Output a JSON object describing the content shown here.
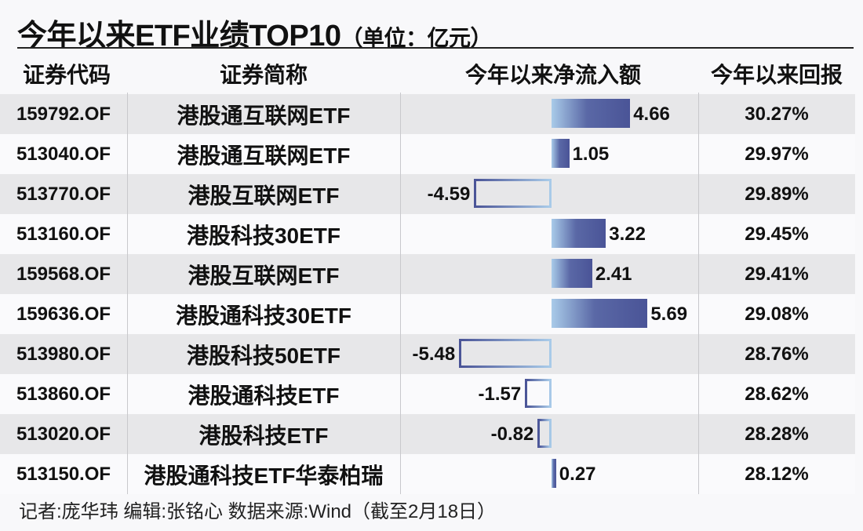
{
  "title": "今年以来ETF业绩TOP10",
  "unit": "（单位：亿元）",
  "headers": [
    "证券代码",
    "证券简称",
    "今年以来净流入额",
    "今年以来回报"
  ],
  "colors": {
    "bar_dark": "#4a5497",
    "bar_light": "#a9cbe9",
    "row_odd": "#e7e7e9",
    "row_even": "#fafafc"
  },
  "chart_data": {
    "type": "bar",
    "orientation": "horizontal",
    "categories": [
      "159792.OF",
      "513040.OF",
      "513770.OF",
      "513160.OF",
      "159568.OF",
      "159636.OF",
      "513980.OF",
      "513860.OF",
      "513020.OF",
      "513150.OF"
    ],
    "names": [
      "港股通互联网ETF",
      "港股通互联网ETF",
      "港股互联网ETF",
      "港股科技30ETF",
      "港股互联网ETF",
      "港股通科技30ETF",
      "港股科技50ETF",
      "港股通科技ETF",
      "港股科技ETF",
      "港股通科技ETF华泰柏瑞"
    ],
    "values": [
      4.66,
      1.05,
      -4.59,
      3.22,
      2.41,
      5.69,
      -5.48,
      -1.57,
      -0.82,
      0.27
    ],
    "value_labels": [
      "4.66",
      "1.05",
      "-4.59",
      "3.22",
      "2.41",
      "5.69",
      "-5.48",
      "-1.57",
      "-0.82",
      "0.27"
    ],
    "returns": [
      "30.27%",
      "29.97%",
      "29.89%",
      "29.45%",
      "29.41%",
      "29.08%",
      "28.76%",
      "28.62%",
      "28.28%",
      "28.12%"
    ]
  },
  "footer": "记者:庞华玮   编辑:张铭心   数据来源:Wind（截至2月18日）"
}
